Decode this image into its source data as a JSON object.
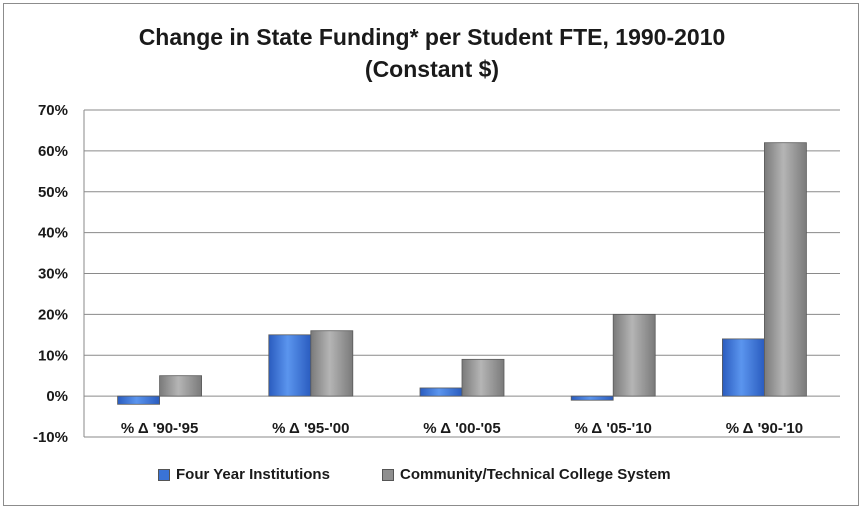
{
  "chart_data": {
    "type": "bar",
    "title": "Change in State Funding* per Student FTE, 1990-2010",
    "subtitle": "(Constant $)",
    "categories": [
      "% Δ '90-'95",
      "% Δ '95-'00",
      "% Δ '00-'05",
      "% Δ '05-'10",
      "% Δ '90-'10"
    ],
    "series": [
      {
        "name": "Four Year Institutions",
        "color": "#3a73d6",
        "values": [
          -2,
          15,
          2,
          -1,
          14
        ]
      },
      {
        "name": "Community/Technical College System",
        "color": "#8f8f8f",
        "values": [
          5,
          16,
          9,
          20,
          62
        ]
      }
    ],
    "ylim": [
      -10,
      70
    ],
    "yticks": [
      "-10%",
      "0%",
      "10%",
      "20%",
      "30%",
      "40%",
      "50%",
      "60%",
      "70%"
    ],
    "grid": true,
    "legend_position": "bottom"
  }
}
